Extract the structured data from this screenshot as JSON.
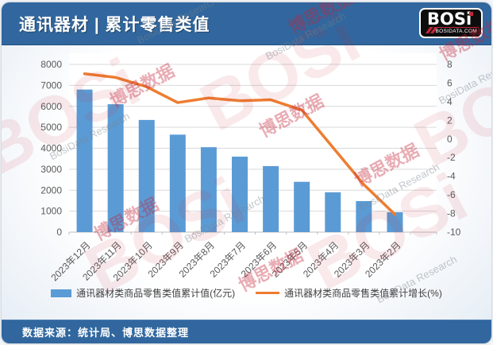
{
  "header": {
    "title": "通讯器材 | 累计零售类值",
    "logo": {
      "text": "BOSi",
      "site": "BOSIDATA.COM"
    }
  },
  "footer": {
    "source": "数据来源：统计局、博思数据整理"
  },
  "watermark": {
    "logo": "BOSi",
    "cn": "博思数据",
    "en": "BosiData Research"
  },
  "colors": {
    "header_bg": "#31679E",
    "bar": "#5B9BD5",
    "line": "#ED7D31",
    "grid": "#D9D9D9",
    "axis_line": "#BFBFBF",
    "axis_text": "#595959",
    "logo_red": "#c3263a"
  },
  "chart_data": {
    "type": "bar+line combo",
    "categories": [
      "2023年12月",
      "2023年11月",
      "2023年10月",
      "2023年9月",
      "2023年8月",
      "2023年7月",
      "2023年6月",
      "2023年5月",
      "2023年4月",
      "2023年3月",
      "2023年2月"
    ],
    "series": [
      {
        "name": "通讯器材类商品零售类值累计值(亿元)",
        "type": "bar",
        "axis": "left",
        "values": [
          6800,
          6100,
          5350,
          4650,
          4050,
          3600,
          3150,
          2400,
          1900,
          1480,
          950
        ]
      },
      {
        "name": "通讯器材类商品零售类值累计增长(%)",
        "type": "line",
        "axis": "right",
        "values": [
          7.0,
          6.6,
          5.6,
          3.9,
          4.4,
          4.1,
          4.2,
          3.1,
          -0.9,
          -4.9,
          -8.1
        ]
      }
    ],
    "left_axis": {
      "min": 0,
      "max": 8000,
      "step": 1000,
      "ticks": [
        "0",
        "1000",
        "2000",
        "3000",
        "4000",
        "5000",
        "6000",
        "7000",
        "8000"
      ]
    },
    "right_axis": {
      "min": -10,
      "max": 8,
      "step": 2,
      "ticks": [
        "-10",
        "-8",
        "-6",
        "-4",
        "-2",
        "0",
        "2",
        "4",
        "6",
        "8"
      ]
    },
    "grid": true,
    "legend_position": "bottom"
  }
}
